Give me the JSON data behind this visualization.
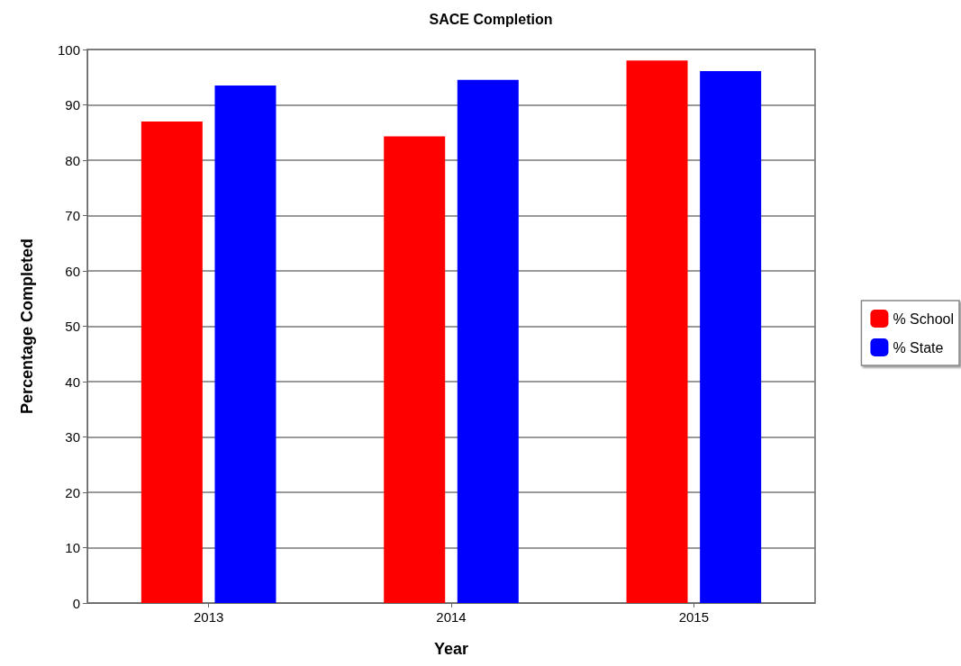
{
  "chart_data": {
    "type": "bar",
    "title": "SACE Completion",
    "xlabel": "Year",
    "ylabel": "Percentage Completed",
    "categories": [
      "2013",
      "2014",
      "2015"
    ],
    "series": [
      {
        "name": "% School",
        "color": "#ff0000",
        "values": [
          87.0,
          84.3,
          98.0
        ]
      },
      {
        "name": "% State",
        "color": "#0000ff",
        "values": [
          93.5,
          94.5,
          96.1
        ]
      }
    ],
    "ylim": [
      0,
      100
    ],
    "yticks": [
      0,
      10,
      20,
      30,
      40,
      50,
      60,
      70,
      80,
      90,
      100
    ],
    "grid": "y",
    "legend": "right"
  }
}
